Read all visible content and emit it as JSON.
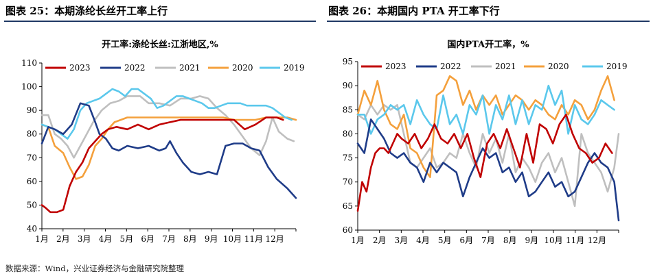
{
  "header": {
    "left_title": "图表 25：本期涤纶长丝开工率上行",
    "right_title": "图表 26：本期国内 PTA 开工率下行"
  },
  "source": "数据来源：Wind，兴业证券经济与金融研究院整理",
  "colors": {
    "2023": "#c00000",
    "2022": "#1f3c88",
    "2021": "#bfbfbf",
    "2020": "#f4a03c",
    "2019": "#5bc8ec"
  },
  "chart_data": [
    {
      "type": "line",
      "title": "开工率:涤纶长丝:江浙地区,%",
      "xlabel": "",
      "ylabel": "",
      "ylim": [
        40,
        110
      ],
      "yticks": [
        "40",
        "50",
        "60",
        "70",
        "80",
        "90",
        "100",
        "110"
      ],
      "xlim": [
        0,
        11.9
      ],
      "xticks": [
        "1月",
        "2月",
        "3月",
        "4月",
        "5月",
        "6月",
        "7月",
        "8月",
        "9月",
        "10月",
        "11月",
        "12月"
      ],
      "legend_position": "top",
      "grid": false,
      "series": [
        {
          "name": "2023",
          "x": [
            0,
            0.15,
            0.4,
            0.7,
            1.0,
            1.3,
            1.6,
            1.9,
            2.2,
            2.5,
            2.8,
            3.1,
            3.5,
            4.0,
            4.5,
            5.0,
            5.5,
            6.0,
            6.5,
            7.0,
            7.5,
            8.0,
            8.5,
            9.0,
            9.5,
            10.0,
            10.5,
            11.0,
            11.3
          ],
          "y": [
            50,
            49,
            47,
            47,
            48,
            58,
            64,
            68,
            74,
            77,
            80,
            82,
            83,
            82,
            84,
            82,
            84,
            85,
            86,
            86,
            86,
            86,
            86,
            86,
            82,
            84,
            87,
            87,
            86
          ]
        },
        {
          "name": "2022",
          "x": [
            0,
            0.3,
            0.6,
            1.0,
            1.4,
            1.8,
            2.2,
            2.5,
            2.7,
            3.0,
            3.3,
            3.6,
            4.0,
            4.5,
            5.0,
            5.5,
            5.8,
            6.0,
            6.3,
            6.6,
            7.0,
            7.4,
            7.8,
            8.2,
            8.6,
            9.0,
            9.4,
            9.8,
            10.2,
            10.6,
            11.0,
            11.5,
            11.9
          ],
          "y": [
            76,
            83,
            82,
            80,
            84,
            93,
            92,
            85,
            80,
            78,
            74,
            73,
            75,
            74,
            75,
            73,
            74,
            77,
            72,
            68,
            64,
            63,
            64,
            63,
            75,
            76,
            76,
            74,
            73,
            66,
            61,
            57,
            53
          ]
        },
        {
          "name": "2021",
          "x": [
            0,
            0.3,
            0.6,
            0.9,
            1.2,
            1.5,
            1.8,
            2.1,
            2.4,
            2.8,
            3.2,
            3.6,
            4.0,
            4.3,
            4.6,
            5.0,
            5.5,
            6.0,
            6.5,
            7.0,
            7.4,
            7.8,
            8.2,
            8.6,
            9.0,
            9.4,
            9.8,
            10.2,
            10.5,
            10.8,
            11.1,
            11.5,
            11.8
          ],
          "y": [
            88,
            88,
            80,
            78,
            75,
            70,
            75,
            80,
            85,
            90,
            93,
            94,
            96,
            96,
            96,
            93,
            93,
            92,
            95,
            95,
            96,
            95,
            91,
            88,
            84,
            79,
            74,
            71,
            77,
            87,
            81,
            78,
            77
          ]
        },
        {
          "name": "2020",
          "x": [
            0,
            0.3,
            0.6,
            1.0,
            1.3,
            1.6,
            1.9,
            2.2,
            2.5,
            2.8,
            3.1,
            3.4,
            3.7,
            4.0,
            4.3,
            4.6,
            5.0,
            5.5,
            6.0,
            6.5,
            7.0,
            7.5,
            8.0,
            8.5,
            9.0,
            9.5,
            10.0,
            10.5,
            11.0,
            11.5,
            11.9
          ],
          "y": [
            84,
            83,
            75,
            72,
            66,
            61,
            62,
            67,
            75,
            78,
            82,
            85,
            86,
            87,
            87,
            87,
            87,
            87,
            87,
            87,
            87,
            87,
            87,
            87,
            86,
            86,
            86,
            87,
            87,
            87,
            86
          ]
        },
        {
          "name": "2019",
          "x": [
            0,
            0.3,
            0.6,
            0.9,
            1.2,
            1.5,
            1.8,
            2.1,
            2.4,
            2.7,
            3.0,
            3.3,
            3.6,
            3.9,
            4.2,
            4.5,
            4.8,
            5.1,
            5.4,
            5.7,
            6.0,
            6.3,
            6.6,
            6.9,
            7.2,
            7.5,
            7.8,
            8.1,
            8.4,
            8.7,
            9.0,
            9.3,
            9.6,
            9.9,
            10.2,
            10.5,
            10.8,
            11.1,
            11.4,
            11.7
          ],
          "y": [
            84,
            83,
            82,
            80,
            78,
            82,
            90,
            93,
            94,
            95,
            97,
            99,
            98,
            96,
            99,
            99,
            97,
            95,
            91,
            92,
            94,
            96,
            96,
            95,
            94,
            93,
            91,
            91,
            92,
            93,
            93,
            93,
            92,
            92,
            92,
            92,
            91,
            89,
            87,
            86
          ]
        }
      ]
    },
    {
      "type": "line",
      "title": "国内PTA开工率，%",
      "xlabel": "",
      "ylabel": "",
      "ylim": [
        60,
        95
      ],
      "yticks": [
        "60",
        "65",
        "70",
        "75",
        "80",
        "85",
        "90",
        "95"
      ],
      "xlim": [
        0,
        11.9
      ],
      "xticks": [
        "1月",
        "2月",
        "3月",
        "4月",
        "5月",
        "6月",
        "7月",
        "8月",
        "9月",
        "10月",
        "11月",
        "12月"
      ],
      "legend_position": "top",
      "grid": false,
      "series": [
        {
          "name": "2023",
          "x": [
            0,
            0.2,
            0.4,
            0.6,
            0.8,
            1.0,
            1.2,
            1.4,
            1.6,
            1.8,
            2.0,
            2.3,
            2.6,
            2.9,
            3.2,
            3.5,
            3.8,
            4.1,
            4.4,
            4.7,
            5.0,
            5.3,
            5.6,
            5.9,
            6.2,
            6.5,
            6.8,
            7.1,
            7.4,
            7.7,
            8.0,
            8.3,
            8.6,
            8.9,
            9.2,
            9.5,
            9.8,
            10.1,
            10.4,
            10.7,
            11.0,
            11.3,
            11.6
          ],
          "y": [
            64,
            70,
            68,
            73,
            76,
            77,
            77,
            76,
            78,
            80,
            79,
            78,
            80,
            77,
            79,
            82,
            79,
            78,
            80,
            77,
            80,
            75,
            71,
            78,
            80,
            77,
            81,
            77,
            73,
            80,
            74,
            82,
            81,
            78,
            82,
            84,
            80,
            77,
            76,
            74,
            75,
            78,
            76
          ]
        },
        {
          "name": "2022",
          "x": [
            0,
            0.3,
            0.6,
            0.9,
            1.2,
            1.5,
            1.8,
            2.1,
            2.4,
            2.7,
            3.0,
            3.3,
            3.6,
            3.9,
            4.2,
            4.5,
            4.8,
            5.1,
            5.4,
            5.7,
            6.0,
            6.3,
            6.6,
            6.9,
            7.2,
            7.5,
            7.8,
            8.1,
            8.4,
            8.7,
            9.0,
            9.3,
            9.6,
            9.9,
            10.2,
            10.5,
            10.8,
            11.1,
            11.4,
            11.7,
            11.9
          ],
          "y": [
            78,
            76,
            83,
            81,
            79,
            76,
            75,
            76,
            74,
            73,
            70,
            74,
            72,
            74,
            73,
            72,
            67,
            71,
            74,
            77,
            75,
            76,
            72,
            73,
            70,
            72,
            67,
            68,
            70,
            72,
            69,
            70,
            67,
            68,
            71,
            74,
            76,
            74,
            73,
            70,
            62
          ]
        },
        {
          "name": "2021",
          "x": [
            0,
            0.3,
            0.6,
            0.9,
            1.2,
            1.5,
            1.8,
            2.1,
            2.4,
            2.7,
            3.0,
            3.3,
            3.6,
            3.9,
            4.2,
            4.5,
            4.8,
            5.1,
            5.4,
            5.7,
            6.0,
            6.3,
            6.6,
            6.9,
            7.2,
            7.5,
            7.8,
            8.1,
            8.4,
            8.7,
            9.0,
            9.3,
            9.6,
            9.9,
            10.2,
            10.5,
            10.8,
            11.1,
            11.4,
            11.7,
            11.9
          ],
          "y": [
            84,
            83,
            86,
            84,
            86,
            85,
            86,
            80,
            74,
            73,
            75,
            77,
            73,
            74,
            76,
            75,
            80,
            76,
            73,
            80,
            76,
            79,
            74,
            80,
            72,
            75,
            73,
            70,
            74,
            76,
            72,
            75,
            70,
            65,
            80,
            76,
            74,
            72,
            68,
            73,
            80
          ]
        },
        {
          "name": "2020",
          "x": [
            0,
            0.3,
            0.6,
            0.9,
            1.2,
            1.5,
            1.8,
            2.1,
            2.4,
            2.7,
            3.0,
            3.3,
            3.6,
            3.9,
            4.2,
            4.5,
            4.8,
            5.1,
            5.4,
            5.7,
            6.0,
            6.3,
            6.6,
            6.9,
            7.2,
            7.5,
            7.8,
            8.1,
            8.4,
            8.7,
            9.0,
            9.3,
            9.6,
            9.9,
            10.2,
            10.5,
            10.8,
            11.1,
            11.4,
            11.7
          ],
          "y": [
            84,
            89,
            86,
            91,
            85,
            82,
            81,
            84,
            77,
            76,
            73,
            71,
            88,
            89,
            92,
            91,
            86,
            89,
            85,
            88,
            86,
            88,
            84,
            86,
            88,
            87,
            85,
            87,
            86,
            84,
            83,
            86,
            84,
            87,
            86,
            83,
            85,
            89,
            92,
            87
          ]
        },
        {
          "name": "2019",
          "x": [
            0,
            0.3,
            0.6,
            0.9,
            1.2,
            1.5,
            1.8,
            2.1,
            2.4,
            2.7,
            3.0,
            3.3,
            3.6,
            3.9,
            4.2,
            4.5,
            4.8,
            5.1,
            5.4,
            5.7,
            6.0,
            6.3,
            6.6,
            6.9,
            7.2,
            7.5,
            7.8,
            8.1,
            8.4,
            8.7,
            9.0,
            9.3,
            9.6,
            9.9,
            10.2,
            10.5,
            10.8,
            11.1,
            11.4,
            11.7
          ],
          "y": [
            84,
            84,
            80,
            83,
            84,
            86,
            85,
            86,
            82,
            87,
            84,
            82,
            81,
            88,
            82,
            84,
            80,
            86,
            84,
            88,
            80,
            86,
            83,
            88,
            82,
            87,
            82,
            86,
            85,
            90,
            86,
            89,
            80,
            86,
            83,
            82,
            84,
            87,
            86,
            85
          ]
        }
      ]
    }
  ]
}
